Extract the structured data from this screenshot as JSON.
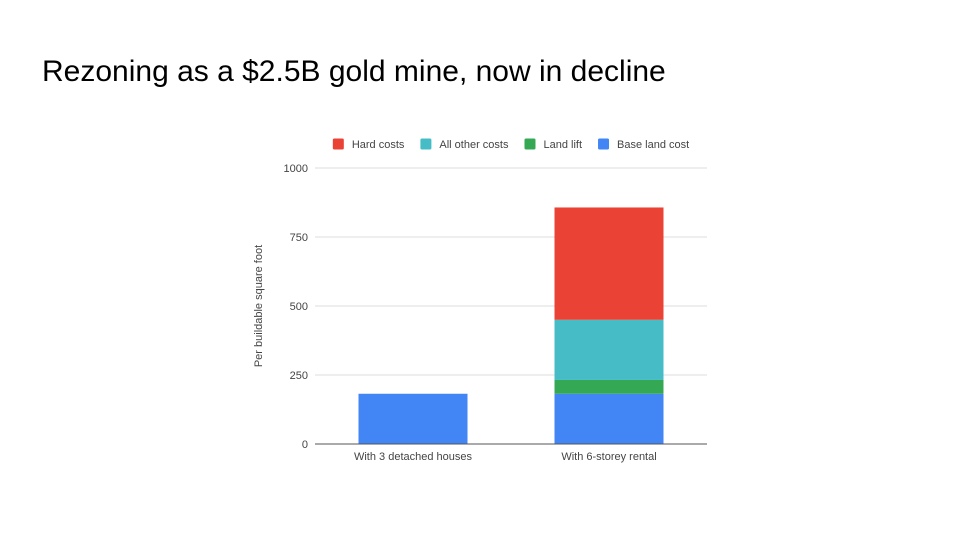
{
  "slide": {
    "title": "Rezoning as a $2.5B gold mine, now in decline"
  },
  "chart_data": {
    "type": "bar",
    "stacked": true,
    "categories": [
      "With 3 detached houses",
      "With 6-storey rental"
    ],
    "series": [
      {
        "name": "Base land cost",
        "color": "#4285F4",
        "values": [
          182,
          182
        ]
      },
      {
        "name": "Land lift",
        "color": "#34A853",
        "values": [
          0,
          50
        ]
      },
      {
        "name": "All other costs",
        "color": "#46BDC6",
        "values": [
          0,
          218
        ]
      },
      {
        "name": "Hard costs",
        "color": "#EA4335",
        "values": [
          0,
          407
        ]
      }
    ],
    "legend_order": [
      "Hard costs",
      "All other costs",
      "Land lift",
      "Base land cost"
    ],
    "legend_position": "top",
    "ylabel": "Per buildable square foot",
    "xlabel": "",
    "ylim": [
      0,
      1000
    ],
    "yticks": [
      0,
      250,
      500,
      750,
      1000
    ],
    "ytick_labels": [
      "0",
      "250",
      "500",
      "750",
      "1000"
    ],
    "grid": true
  }
}
